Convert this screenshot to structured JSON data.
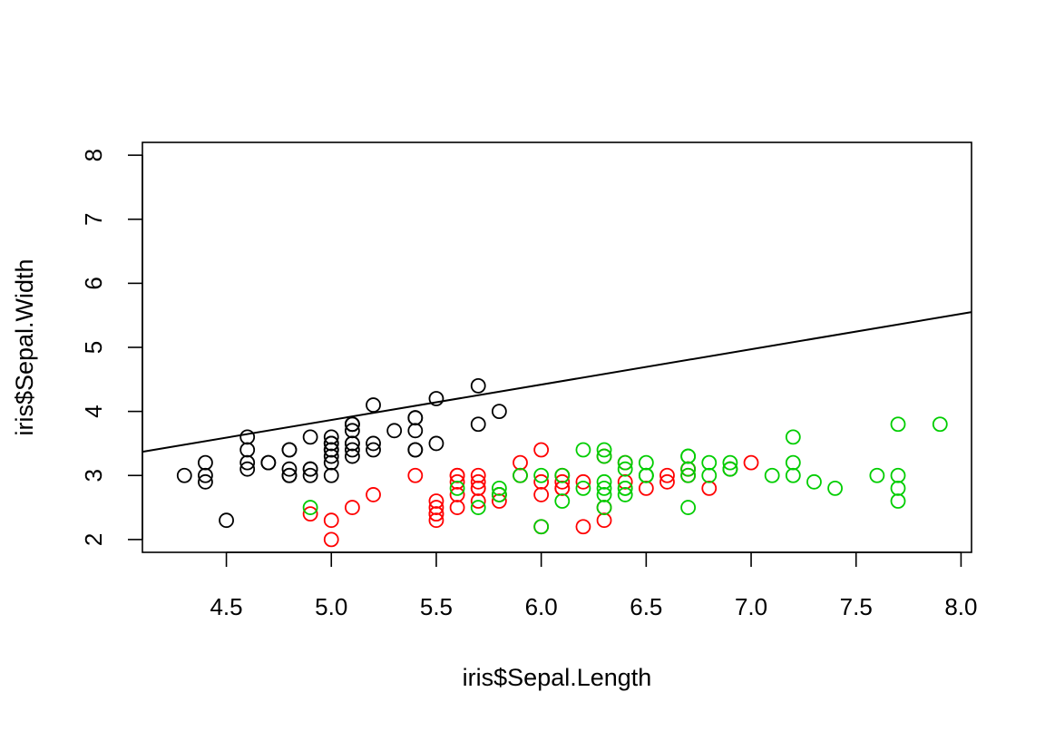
{
  "chart_data": {
    "type": "scatter",
    "title": "",
    "xlabel": "iris$Sepal.Length",
    "ylabel": "iris$Sepal.Width",
    "xlim": [
      4.1,
      8.05
    ],
    "ylim": [
      1.8,
      8.2
    ],
    "xticks": [
      4.5,
      5.0,
      5.5,
      6.0,
      6.5,
      7.0,
      7.5,
      8.0
    ],
    "xtick_labels": [
      "4.5",
      "5.0",
      "5.5",
      "6.0",
      "6.5",
      "7.0",
      "7.5",
      "8.0"
    ],
    "yticks": [
      2,
      3,
      4,
      5,
      6,
      7,
      8
    ],
    "ytick_labels": [
      "2",
      "3",
      "4",
      "5",
      "6",
      "7",
      "8"
    ],
    "grid": false,
    "marker": "open-circle",
    "series": [
      {
        "color": "#000000",
        "x": [
          5.1,
          4.9,
          4.7,
          4.6,
          5.0,
          5.4,
          4.6,
          5.0,
          4.4,
          4.9,
          5.4,
          4.8,
          4.8,
          4.3,
          5.8,
          5.7,
          5.4,
          5.1,
          5.7,
          5.1,
          5.4,
          5.1,
          4.6,
          5.1,
          4.8,
          5.0,
          5.0,
          5.2,
          5.2,
          4.7,
          4.8,
          5.4,
          5.2,
          5.5,
          4.9,
          5.0,
          5.5,
          4.9,
          4.4,
          5.1,
          5.0,
          4.5,
          4.4,
          5.0,
          5.1,
          4.8,
          5.1,
          4.6,
          5.3,
          5.0
        ],
        "y": [
          3.5,
          3.0,
          3.2,
          3.1,
          3.6,
          3.9,
          3.4,
          3.4,
          2.9,
          3.1,
          3.7,
          3.4,
          3.0,
          3.0,
          4.0,
          4.4,
          3.9,
          3.5,
          3.8,
          3.8,
          3.4,
          3.7,
          3.6,
          3.3,
          3.4,
          3.0,
          3.4,
          3.5,
          3.4,
          3.2,
          3.1,
          3.4,
          4.1,
          4.2,
          3.1,
          3.2,
          3.5,
          3.6,
          3.0,
          3.4,
          3.5,
          2.3,
          3.2,
          3.5,
          3.8,
          3.0,
          3.8,
          3.2,
          3.7,
          3.3
        ]
      },
      {
        "color": "#ff0000",
        "x": [
          7.0,
          6.4,
          6.9,
          5.5,
          6.5,
          5.7,
          6.3,
          4.9,
          6.6,
          5.2,
          5.0,
          5.9,
          6.0,
          6.1,
          5.6,
          6.7,
          5.6,
          5.8,
          6.2,
          5.6,
          5.9,
          6.1,
          6.3,
          6.1,
          6.4,
          6.6,
          6.8,
          6.7,
          6.0,
          5.7,
          5.5,
          5.5,
          5.8,
          6.0,
          5.4,
          6.0,
          6.7,
          6.3,
          5.6,
          5.5,
          5.5,
          6.1,
          5.8,
          5.0,
          5.6,
          5.7,
          5.7,
          6.2,
          5.1,
          5.7
        ],
        "y": [
          3.2,
          3.2,
          3.1,
          2.3,
          2.8,
          2.8,
          3.3,
          2.4,
          2.9,
          2.7,
          2.0,
          3.0,
          2.2,
          2.9,
          2.9,
          3.1,
          3.0,
          2.7,
          2.2,
          2.5,
          3.2,
          2.8,
          2.5,
          2.8,
          2.9,
          3.0,
          2.8,
          3.0,
          2.9,
          2.6,
          2.4,
          2.4,
          2.7,
          2.7,
          3.0,
          3.4,
          3.1,
          2.3,
          3.0,
          2.5,
          2.6,
          3.0,
          2.6,
          2.3,
          2.7,
          3.0,
          2.9,
          2.9,
          2.5,
          2.8
        ]
      },
      {
        "color": "#00cd00",
        "x": [
          6.3,
          5.8,
          7.1,
          6.3,
          6.5,
          7.6,
          4.9,
          7.3,
          6.7,
          7.2,
          6.5,
          6.4,
          6.8,
          5.7,
          5.8,
          6.4,
          6.5,
          7.7,
          7.7,
          6.0,
          6.9,
          5.6,
          7.7,
          6.3,
          6.7,
          7.2,
          6.2,
          6.1,
          6.4,
          7.2,
          7.4,
          7.9,
          6.4,
          6.3,
          6.1,
          7.7,
          6.3,
          6.4,
          6.0,
          6.9,
          6.7,
          6.9,
          5.8,
          6.8,
          6.7,
          6.7,
          6.3,
          6.5,
          6.2,
          5.9
        ],
        "y": [
          3.3,
          2.7,
          3.0,
          2.9,
          3.0,
          3.0,
          2.5,
          2.9,
          2.5,
          3.6,
          3.2,
          2.7,
          3.0,
          2.5,
          2.8,
          3.2,
          3.0,
          3.8,
          2.6,
          2.2,
          3.2,
          2.8,
          2.8,
          2.7,
          3.3,
          3.2,
          2.8,
          3.0,
          2.8,
          3.0,
          2.8,
          3.8,
          2.8,
          2.8,
          2.6,
          3.0,
          3.4,
          3.1,
          3.0,
          3.1,
          3.1,
          3.1,
          2.7,
          3.2,
          3.3,
          3.0,
          2.5,
          3.0,
          3.4,
          3.0
        ]
      }
    ],
    "line": {
      "color": "#000000",
      "x": [
        4.1,
        8.05
      ],
      "y": [
        3.37,
        5.55
      ]
    }
  }
}
